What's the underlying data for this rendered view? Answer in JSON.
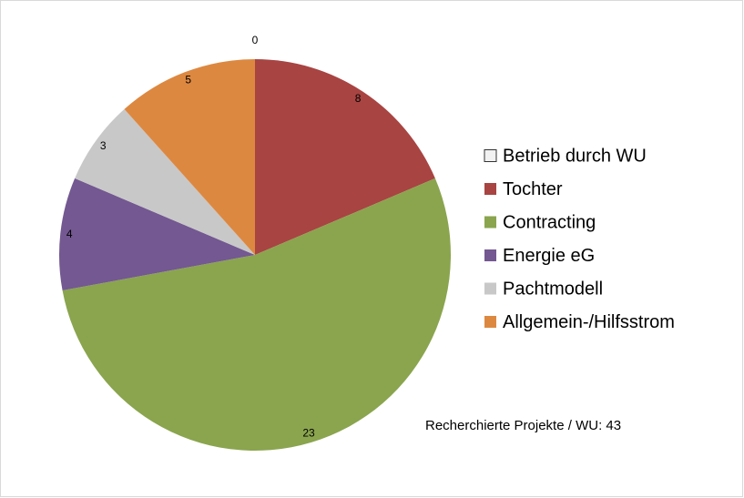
{
  "chart_data": {
    "type": "pie",
    "categories": [
      "Betrieb durch WU",
      "Tochter",
      "Contracting",
      "Energie eG",
      "Pachtmodell",
      "Allgemein-/Hilfsstrom"
    ],
    "values": [
      0,
      8,
      23,
      4,
      3,
      5
    ],
    "colors": [
      "#f2f2f2",
      "#a84442",
      "#8aa54e",
      "#735891",
      "#c8c8c8",
      "#dd8840"
    ],
    "annotation": "Recherchierte Projekte / WU: 43"
  }
}
